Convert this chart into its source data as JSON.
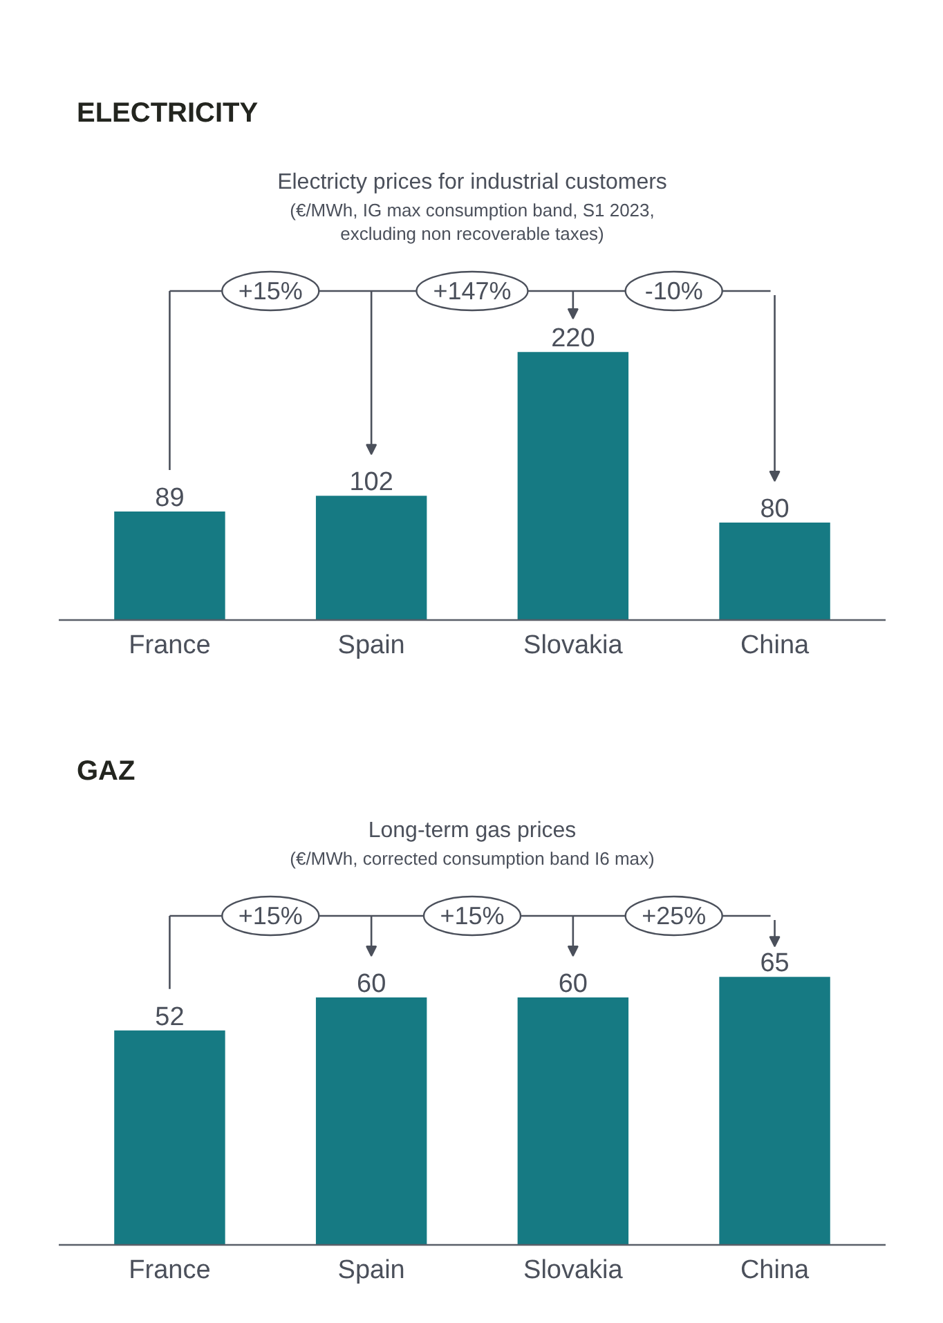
{
  "chart_data": [
    {
      "type": "bar",
      "title": "ELECTRICITY",
      "subtitle": "Electricty prices for industrial customers",
      "annotations": [
        "(€/MWh, IG max consumption band, S1 2023, excluding non recoverable taxes)",
        "+15%",
        "+147%",
        "-10%"
      ],
      "categories": [
        "France",
        "Spain",
        "Slovakia",
        "China"
      ],
      "values": [
        89,
        102,
        220,
        80
      ],
      "color": "#167a83",
      "data_labels": true
    },
    {
      "type": "bar",
      "title": "GAZ",
      "subtitle": "Long-term gas prices",
      "annotations": [
        "(€/MWh, corrected consumption band I6 max)",
        "+15%",
        "+15%",
        "+25%"
      ],
      "categories": [
        "France",
        "Spain",
        "Slovakia",
        "China"
      ],
      "values": [
        52,
        60,
        60,
        65
      ],
      "color": "#167a83",
      "data_labels": true
    }
  ]
}
